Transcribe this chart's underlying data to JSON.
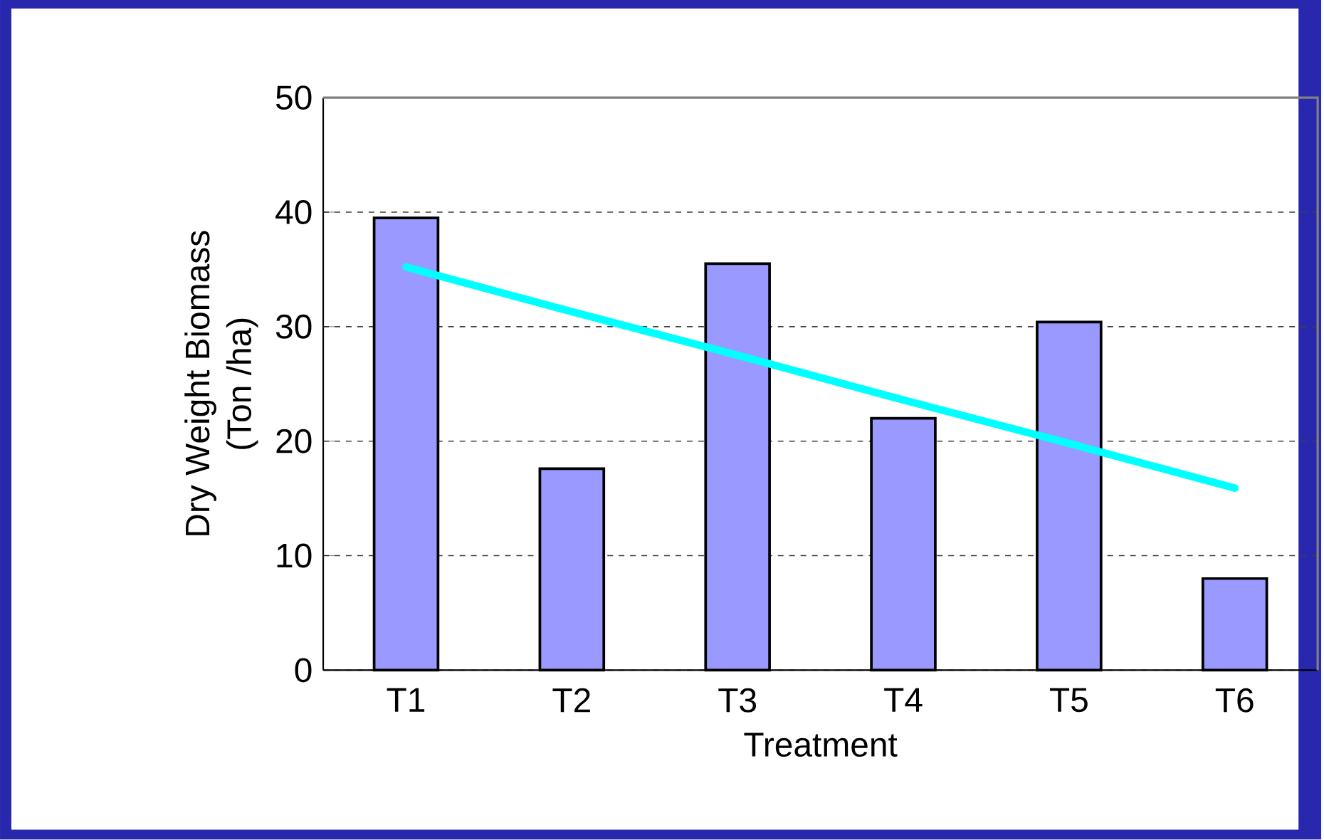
{
  "chart_data": {
    "type": "bar",
    "xlabel": "Treatment",
    "ylabel": "Dry Weight Biomass\n(Ton /ha)",
    "categories": [
      "T1",
      "T2",
      "T3",
      "T4",
      "T5",
      "T6"
    ],
    "series": [
      {
        "color": "#9999ff",
        "values": [
          39.5,
          17.6,
          35.5,
          22.0,
          30.4,
          8.0
        ]
      },
      {
        "type": "line",
        "color": "#00ffff",
        "values": [
          35.2,
          31.3,
          27.5,
          23.6,
          19.8,
          15.9
        ]
      }
    ],
    "ylim": [
      0,
      50
    ],
    "yticks": [
      0,
      10,
      20,
      30,
      40,
      50
    ],
    "grid": "y"
  }
}
